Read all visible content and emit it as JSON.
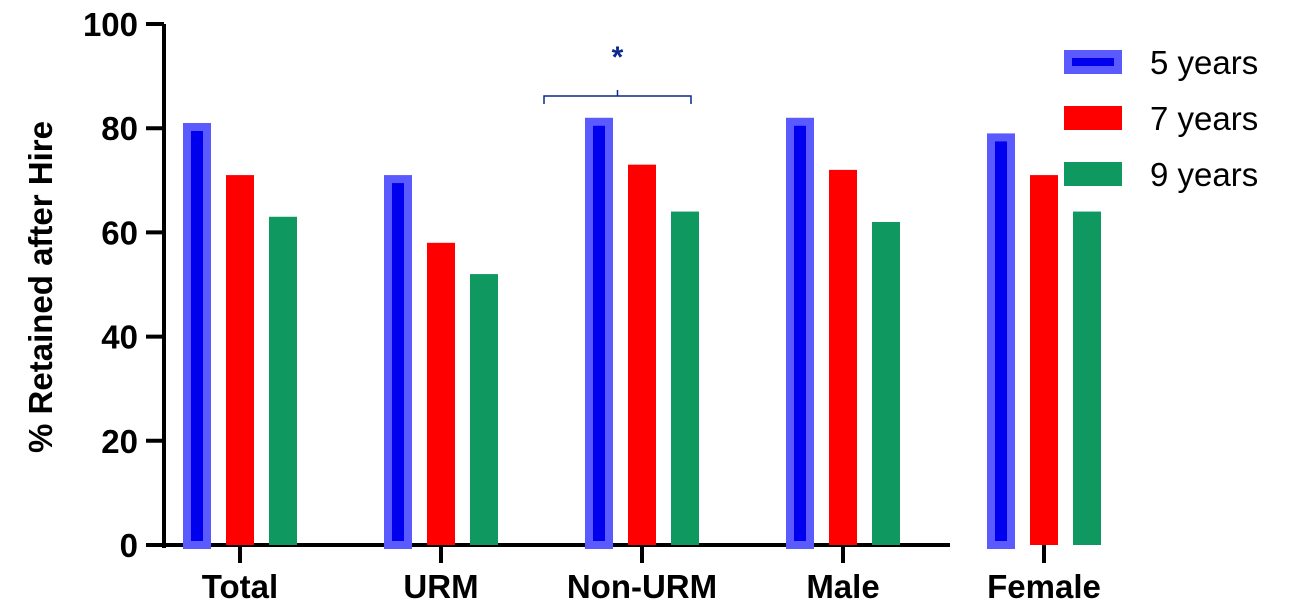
{
  "chart_data": {
    "type": "bar",
    "title": "",
    "xlabel": "",
    "ylabel": "% Retained after Hire",
    "ylim": [
      0,
      100
    ],
    "yticks": [
      0,
      20,
      40,
      60,
      80,
      100
    ],
    "categories": [
      "Total",
      "URM",
      "Non-URM",
      "Male",
      "Female"
    ],
    "series": [
      {
        "name": "5 years",
        "values": [
          81,
          71,
          82,
          82,
          79
        ],
        "color": "#0000ee",
        "edge_color": "#5a5aff"
      },
      {
        "name": "7 years",
        "values": [
          71,
          58,
          73,
          72,
          71
        ],
        "color": "#ff0000",
        "edge_color": "#ff0000"
      },
      {
        "name": "9 years",
        "values": [
          63,
          52,
          64,
          62,
          64
        ],
        "color": "#0f9960",
        "edge_color": "#0f9960"
      }
    ],
    "legend_position": "right",
    "grid": false,
    "annotations": [
      {
        "text": "*",
        "type": "significance-bracket",
        "from_category": "URM",
        "to_category": "Non-URM",
        "color": "#0b2a8c"
      }
    ]
  }
}
